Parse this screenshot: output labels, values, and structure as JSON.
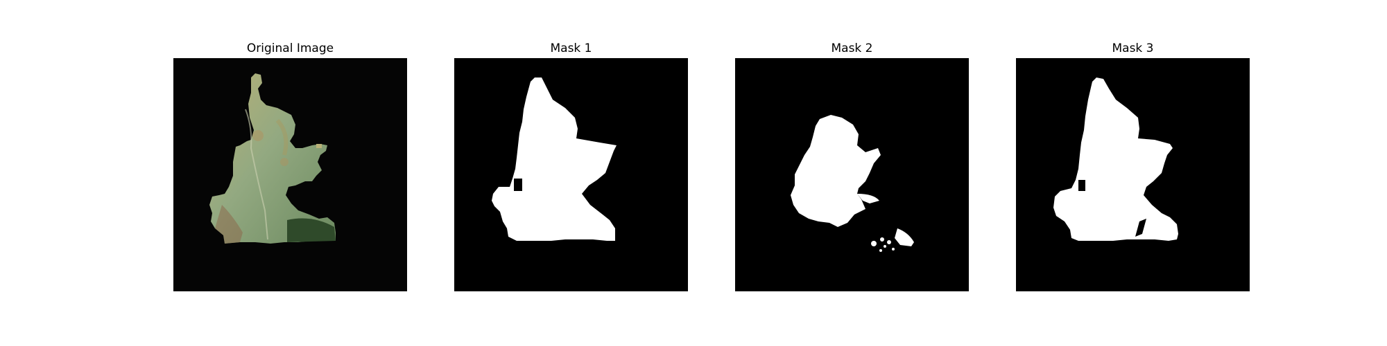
{
  "figure": {
    "panels": [
      {
        "title": "Original Image"
      },
      {
        "title": "Mask 1"
      },
      {
        "title": "Mask 2"
      },
      {
        "title": "Mask 3"
      }
    ]
  },
  "colors": {
    "background": "#000000",
    "mask_foreground": "#ffffff",
    "leaf_green": "#8aa27a",
    "leaf_yellow": "#b7ad6c",
    "leaf_dark": "#2f4a2a",
    "leaf_brown": "#8d6a4c"
  }
}
